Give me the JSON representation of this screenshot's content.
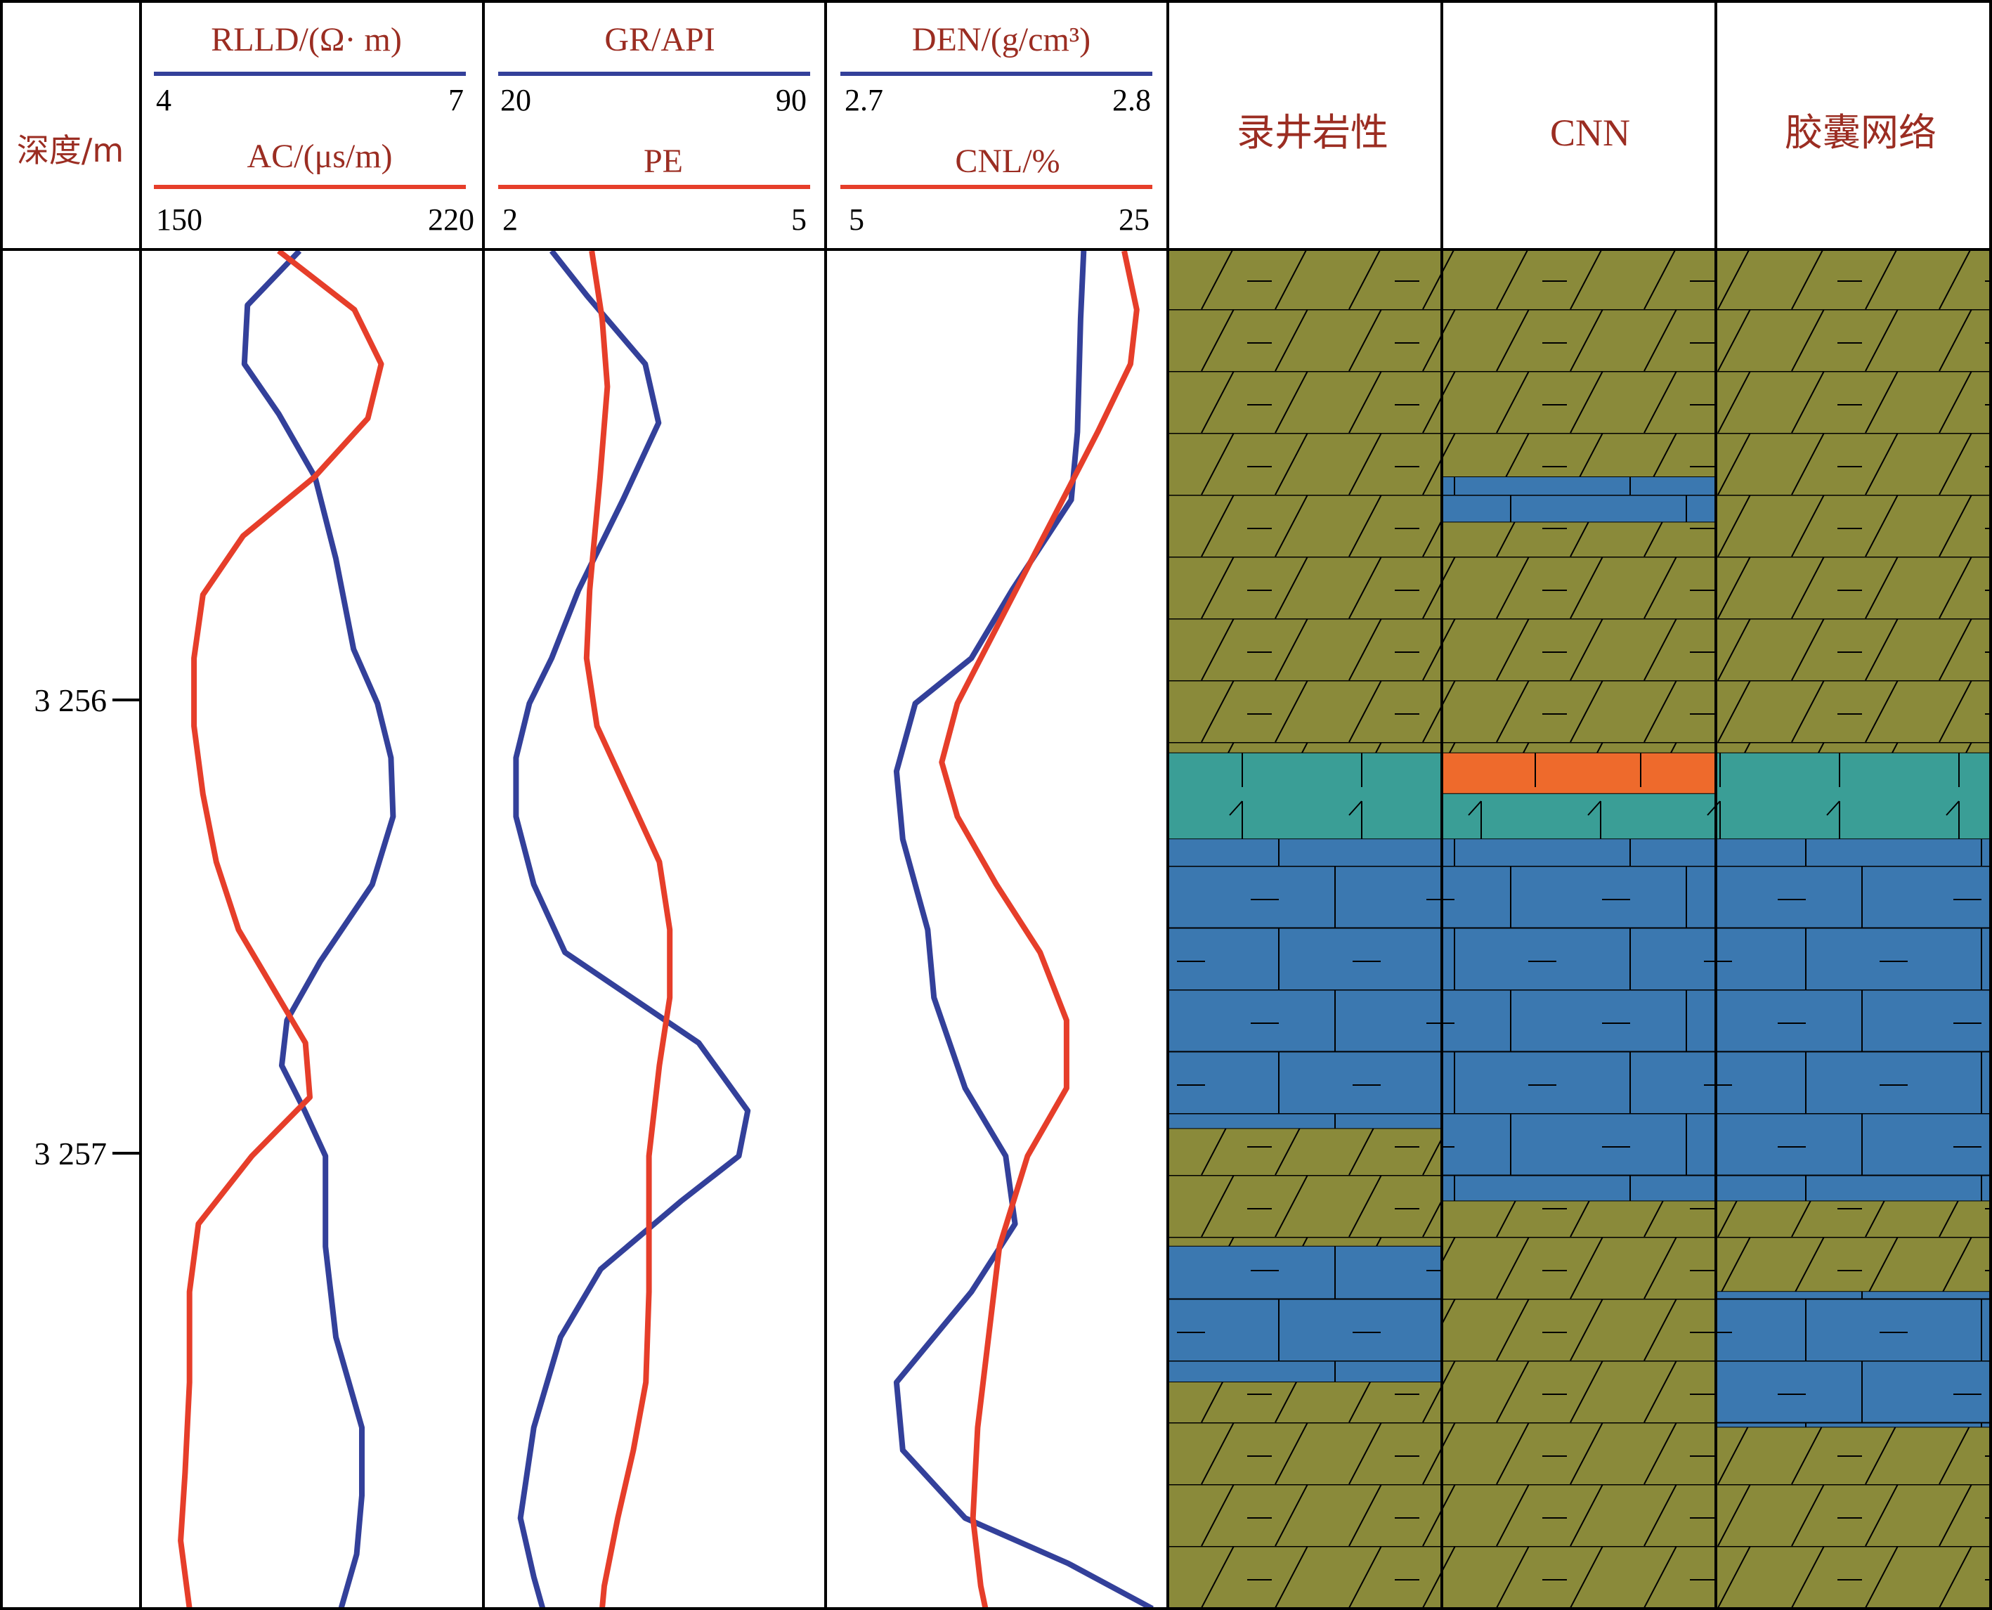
{
  "chart_data": {
    "type": "line",
    "title": "",
    "depth_axis": {
      "label": "深度/m",
      "range": [
        3255.0,
        3258.0
      ],
      "ticks": [
        {
          "value": 3256,
          "label": "3 256"
        },
        {
          "value": 3257,
          "label": "3 257"
        }
      ]
    },
    "tracks": [
      {
        "curves": [
          {
            "name": "RLLD/(Ω· m)",
            "color": "#33409a",
            "range": [
              4,
              7
            ],
            "scale_labels": [
              "4",
              "7"
            ],
            "points": [
              [
                3255.0,
                5.4
              ],
              [
                3255.12,
                4.9
              ],
              [
                3255.25,
                4.87
              ],
              [
                3255.36,
                5.2
              ],
              [
                3255.5,
                5.55
              ],
              [
                3255.68,
                5.75
              ],
              [
                3255.88,
                5.92
              ],
              [
                3256.0,
                6.15
              ],
              [
                3256.12,
                6.28
              ],
              [
                3256.25,
                6.3
              ],
              [
                3256.4,
                6.1
              ],
              [
                3256.57,
                5.6
              ],
              [
                3256.7,
                5.28
              ],
              [
                3256.8,
                5.23
              ],
              [
                3256.9,
                5.45
              ],
              [
                3257.0,
                5.65
              ],
              [
                3257.2,
                5.65
              ],
              [
                3257.4,
                5.75
              ],
              [
                3257.6,
                6.0
              ],
              [
                3257.75,
                6.0
              ],
              [
                3257.88,
                5.95
              ],
              [
                3258.0,
                5.8
              ]
            ]
          },
          {
            "name": "AC/(μs/m)",
            "color": "#e63e2a",
            "range": [
              150,
              220
            ],
            "scale_labels": [
              "150",
              "220"
            ],
            "points": [
              [
                3255.0,
                178
              ],
              [
                3255.13,
                195
              ],
              [
                3255.25,
                201
              ],
              [
                3255.37,
                198
              ],
              [
                3255.5,
                186
              ],
              [
                3255.63,
                170
              ],
              [
                3255.76,
                161
              ],
              [
                3255.9,
                159
              ],
              [
                3256.05,
                159
              ],
              [
                3256.2,
                161
              ],
              [
                3256.35,
                164
              ],
              [
                3256.5,
                169
              ],
              [
                3256.65,
                178
              ],
              [
                3256.75,
                184
              ],
              [
                3256.87,
                185
              ],
              [
                3257.0,
                172
              ],
              [
                3257.15,
                160
              ],
              [
                3257.3,
                158
              ],
              [
                3257.5,
                158
              ],
              [
                3257.7,
                157
              ],
              [
                3257.85,
                156
              ],
              [
                3258.0,
                158
              ]
            ]
          }
        ]
      },
      {
        "curves": [
          {
            "name": "GR/API",
            "color": "#33409a",
            "range": [
              20,
              90
            ],
            "scale_labels": [
              "20",
              "90"
            ],
            "points": [
              [
                3255.0,
                32
              ],
              [
                3255.1,
                40
              ],
              [
                3255.25,
                53
              ],
              [
                3255.38,
                56
              ],
              [
                3255.55,
                48
              ],
              [
                3255.75,
                38
              ],
              [
                3255.9,
                32
              ],
              [
                3256.0,
                27
              ],
              [
                3256.12,
                24
              ],
              [
                3256.25,
                24
              ],
              [
                3256.4,
                28
              ],
              [
                3256.55,
                35
              ],
              [
                3256.75,
                65
              ],
              [
                3256.9,
                76
              ],
              [
                3257.0,
                74
              ],
              [
                3257.1,
                61
              ],
              [
                3257.25,
                43
              ],
              [
                3257.4,
                34
              ],
              [
                3257.6,
                28
              ],
              [
                3257.8,
                25
              ],
              [
                3257.93,
                28
              ],
              [
                3258.0,
                30
              ]
            ]
          },
          {
            "name": "PE",
            "color": "#e63e2a",
            "range": [
              2,
              5
            ],
            "scale_labels": [
              "2",
              "5"
            ],
            "points": [
              [
                3255.0,
                2.9
              ],
              [
                3255.15,
                3.0
              ],
              [
                3255.3,
                3.05
              ],
              [
                3255.5,
                2.98
              ],
              [
                3255.75,
                2.88
              ],
              [
                3255.9,
                2.85
              ],
              [
                3256.05,
                2.95
              ],
              [
                3256.2,
                3.25
              ],
              [
                3256.35,
                3.55
              ],
              [
                3256.5,
                3.65
              ],
              [
                3256.65,
                3.65
              ],
              [
                3256.8,
                3.55
              ],
              [
                3257.0,
                3.45
              ],
              [
                3257.3,
                3.45
              ],
              [
                3257.5,
                3.42
              ],
              [
                3257.65,
                3.3
              ],
              [
                3257.8,
                3.15
              ],
              [
                3257.95,
                3.02
              ],
              [
                3258.0,
                3.0
              ]
            ]
          }
        ]
      },
      {
        "curves": [
          {
            "name": "DEN/(g/cm³)",
            "color": "#33409a",
            "range": [
              2.7,
              2.8
            ],
            "scale_labels": [
              "2.7",
              "2.8"
            ],
            "points": [
              [
                3255.0,
                2.778
              ],
              [
                3255.15,
                2.777
              ],
              [
                3255.4,
                2.776
              ],
              [
                3255.55,
                2.774
              ],
              [
                3255.75,
                2.755
              ],
              [
                3255.9,
                2.742
              ],
              [
                3256.0,
                2.724
              ],
              [
                3256.15,
                2.718
              ],
              [
                3256.3,
                2.72
              ],
              [
                3256.5,
                2.728
              ],
              [
                3256.65,
                2.73
              ],
              [
                3256.85,
                2.74
              ],
              [
                3257.0,
                2.753
              ],
              [
                3257.15,
                2.756
              ],
              [
                3257.3,
                2.742
              ],
              [
                3257.5,
                2.718
              ],
              [
                3257.65,
                2.72
              ],
              [
                3257.8,
                2.74
              ],
              [
                3257.9,
                2.773
              ],
              [
                3258.0,
                2.8
              ]
            ]
          },
          {
            "name": "CNL/%",
            "color": "#e63e2a",
            "range": [
              5,
              25
            ],
            "scale_labels": [
              "5",
              "25"
            ],
            "points": [
              [
                3255.0,
                23.2
              ],
              [
                3255.13,
                24.0
              ],
              [
                3255.25,
                23.6
              ],
              [
                3255.4,
                21.5
              ],
              [
                3255.6,
                18.5
              ],
              [
                3255.8,
                15.5
              ],
              [
                3256.0,
                12.5
              ],
              [
                3256.13,
                11.5
              ],
              [
                3256.25,
                12.5
              ],
              [
                3256.4,
                15.0
              ],
              [
                3256.55,
                17.8
              ],
              [
                3256.7,
                19.5
              ],
              [
                3256.85,
                19.5
              ],
              [
                3257.0,
                17.0
              ],
              [
                3257.2,
                15.2
              ],
              [
                3257.4,
                14.5
              ],
              [
                3257.6,
                13.8
              ],
              [
                3257.8,
                13.5
              ],
              [
                3257.95,
                14.0
              ],
              [
                3258.0,
                14.3
              ]
            ]
          }
        ]
      }
    ],
    "lithology_columns": [
      {
        "name": "录井岩性",
        "intervals": [
          {
            "top": 3255.0,
            "bottom": 3256.11,
            "lith": "dolomite"
          },
          {
            "top": 3256.11,
            "bottom": 3256.3,
            "lith": "teal"
          },
          {
            "top": 3256.3,
            "bottom": 3256.94,
            "lith": "limestone"
          },
          {
            "top": 3256.94,
            "bottom": 3257.2,
            "lith": "dolomite"
          },
          {
            "top": 3257.2,
            "bottom": 3257.5,
            "lith": "limestone"
          },
          {
            "top": 3257.5,
            "bottom": 3258.0,
            "lith": "dolomite"
          }
        ]
      },
      {
        "name": "CNN",
        "intervals": [
          {
            "top": 3255.0,
            "bottom": 3255.5,
            "lith": "dolomite"
          },
          {
            "top": 3255.5,
            "bottom": 3255.6,
            "lith": "limestone"
          },
          {
            "top": 3255.6,
            "bottom": 3256.11,
            "lith": "dolomite"
          },
          {
            "top": 3256.11,
            "bottom": 3256.2,
            "lith": "orange"
          },
          {
            "top": 3256.2,
            "bottom": 3256.3,
            "lith": "teal"
          },
          {
            "top": 3256.3,
            "bottom": 3257.1,
            "lith": "limestone"
          },
          {
            "top": 3257.1,
            "bottom": 3258.0,
            "lith": "dolomite"
          }
        ]
      },
      {
        "name": "胶囊网络",
        "intervals": [
          {
            "top": 3255.0,
            "bottom": 3256.11,
            "lith": "dolomite"
          },
          {
            "top": 3256.11,
            "bottom": 3256.3,
            "lith": "teal"
          },
          {
            "top": 3256.3,
            "bottom": 3257.1,
            "lith": "limestone"
          },
          {
            "top": 3257.1,
            "bottom": 3257.3,
            "lith": "dolomite"
          },
          {
            "top": 3257.3,
            "bottom": 3257.6,
            "lith": "limestone"
          },
          {
            "top": 3257.6,
            "bottom": 3258.0,
            "lith": "dolomite"
          }
        ]
      }
    ],
    "lithology_colors": {
      "dolomite": "#8a8a3a",
      "limestone": "#3b78b0",
      "teal": "#3a9e96",
      "orange": "#ee6a2c"
    }
  }
}
